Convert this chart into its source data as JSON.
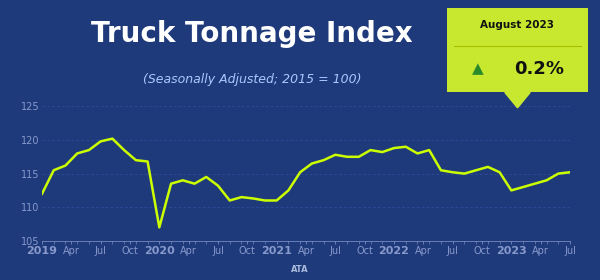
{
  "title": "Truck Tonnage Index",
  "subtitle": "(Seasonally Adjusted; 2015 = 100)",
  "badge_month": "August 2023",
  "badge_value": "0.2%",
  "bg_color": "#1e3a7a",
  "line_color": "#ccff00",
  "text_color": "#ffffff",
  "subtitle_color": "#aac8ff",
  "badge_bg": "#c8e830",
  "badge_text_color": "#111111",
  "badge_arrow_color": "#2a8a2a",
  "ylim": [
    105,
    125
  ],
  "yticks": [
    105,
    110,
    115,
    120,
    125
  ],
  "grid_color": "#3355aa",
  "tick_color": "#8899cc",
  "year_label_color": "#ffffff",
  "x_labels": [
    "2019",
    "Apr",
    "Jul",
    "Oct",
    "2020",
    "Apr",
    "Jul",
    "Oct",
    "2021",
    "Apr",
    "Jul",
    "Oct",
    "2022",
    "Apr",
    "Jul",
    "Oct",
    "2023",
    "Apr",
    "Jul"
  ],
  "data_y": [
    112.0,
    115.5,
    116.2,
    118.0,
    118.5,
    119.8,
    120.2,
    118.5,
    117.0,
    116.8,
    107.0,
    113.5,
    114.0,
    113.5,
    114.5,
    113.2,
    111.0,
    111.5,
    111.3,
    111.0,
    111.0,
    112.5,
    115.2,
    116.5,
    117.0,
    117.8,
    117.5,
    117.5,
    118.5,
    118.2,
    118.8,
    119.0,
    118.0,
    118.5,
    115.5,
    115.2,
    115.0,
    115.5,
    116.0,
    115.2,
    112.5,
    113.0,
    113.5,
    114.0,
    115.0,
    115.2
  ],
  "title_fontsize": 20,
  "subtitle_fontsize": 9,
  "ytick_fontsize": 7,
  "xtick_fontsize": 7
}
